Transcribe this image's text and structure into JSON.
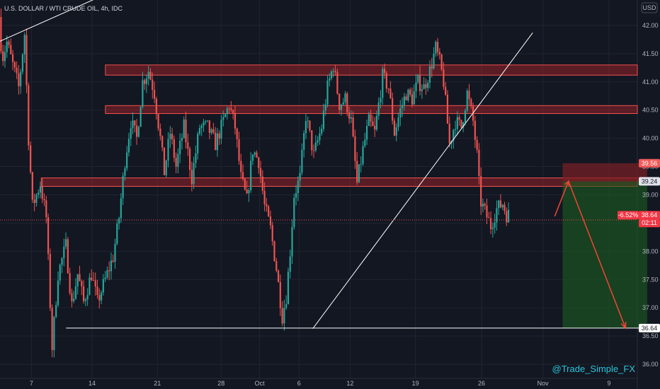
{
  "header": {
    "symbol": "U.S. DOLLAR / WTI CRUDE OIL, 4h, IDC",
    "currency": "USD"
  },
  "watermark": "@Trade_Simple_FX",
  "colors": {
    "background": "#131722",
    "grid": "#1f2430",
    "up": "#26a69a",
    "down": "#ef5350",
    "zone_fill": "#b2242b",
    "zone_border": "#ef5350",
    "line": "#ffffff",
    "arrow": "#f44336",
    "stop": "#7a1f24",
    "target": "#1b5e20"
  },
  "chart_data": {
    "type": "candlestick",
    "title": "U.S. DOLLAR / WTI CRUDE OIL, 4h, IDC",
    "ylim": [
      35.75,
      42.45
    ],
    "xlim": [
      0,
      162
    ],
    "y_ticks": [
      "42.00",
      "41.50",
      "41.00",
      "40.50",
      "40.00",
      "39.50",
      "39.00",
      "38.50",
      "38.00",
      "37.50",
      "37.00",
      "36.50",
      "36.00"
    ],
    "x_ticks": [
      {
        "label": "7",
        "x": 8
      },
      {
        "label": "14",
        "x": 23.4
      },
      {
        "label": "21",
        "x": 40
      },
      {
        "label": "28",
        "x": 56.2
      },
      {
        "label": "Oct",
        "x": 66
      },
      {
        "label": "6",
        "x": 76
      },
      {
        "label": "12",
        "x": 89
      },
      {
        "label": "19",
        "x": 105.6
      },
      {
        "label": "26",
        "x": 122.4
      },
      {
        "label": "Nov",
        "x": 138
      },
      {
        "label": "9",
        "x": 154.8
      }
    ],
    "candles": [],
    "waypoints": [
      [
        0,
        42.15
      ],
      [
        0.8,
        41.4
      ],
      [
        2,
        41.7
      ],
      [
        3.5,
        41.3
      ],
      [
        5,
        40.9
      ],
      [
        6.5,
        41.85
      ],
      [
        7.5,
        40.0
      ],
      [
        8.5,
        38.8
      ],
      [
        10.5,
        39.2
      ],
      [
        12,
        38.6
      ],
      [
        13.5,
        36.3
      ],
      [
        15,
        37.6
      ],
      [
        17,
        38.1
      ],
      [
        18.5,
        37.05
      ],
      [
        20,
        37.6
      ],
      [
        21.5,
        37.1
      ],
      [
        23.5,
        37.6
      ],
      [
        25,
        37.1
      ],
      [
        27,
        37.5
      ],
      [
        29,
        37.9
      ],
      [
        30.5,
        38.6
      ],
      [
        32,
        39.6
      ],
      [
        33.5,
        40.3
      ],
      [
        35,
        40.0
      ],
      [
        36.5,
        41.0
      ],
      [
        38,
        41.2
      ],
      [
        39.5,
        40.8
      ],
      [
        41,
        40.0
      ],
      [
        42,
        39.4
      ],
      [
        43.5,
        40.1
      ],
      [
        45,
        39.5
      ],
      [
        47,
        40.2
      ],
      [
        49,
        39.3
      ],
      [
        51,
        40.2
      ],
      [
        53,
        40.2
      ],
      [
        55,
        39.9
      ],
      [
        57,
        40.3
      ],
      [
        58.5,
        40.6
      ],
      [
        60,
        40.2
      ],
      [
        61.5,
        39.3
      ],
      [
        63,
        38.9
      ],
      [
        64.5,
        39.8
      ],
      [
        66,
        39.6
      ],
      [
        67.5,
        38.8
      ],
      [
        69,
        38.4
      ],
      [
        70.5,
        37.7
      ],
      [
        72,
        36.85
      ],
      [
        73,
        37.2
      ],
      [
        74,
        38.0
      ],
      [
        75,
        39.0
      ],
      [
        76.5,
        39.3
      ],
      [
        78,
        40.4
      ],
      [
        80,
        39.7
      ],
      [
        82,
        40.2
      ],
      [
        83.5,
        40.9
      ],
      [
        85,
        41.3
      ],
      [
        86.5,
        40.6
      ],
      [
        88,
        40.7
      ],
      [
        89.5,
        40.3
      ],
      [
        91,
        39.2
      ],
      [
        92.5,
        39.8
      ],
      [
        94,
        40.3
      ],
      [
        95.5,
        40.1
      ],
      [
        97.5,
        41.1
      ],
      [
        99,
        40.9
      ],
      [
        100.5,
        40.1
      ],
      [
        102,
        40.5
      ],
      [
        103.5,
        40.8
      ],
      [
        105,
        40.7
      ],
      [
        106.5,
        41.0
      ],
      [
        108,
        40.9
      ],
      [
        109.5,
        41.2
      ],
      [
        111,
        41.6
      ],
      [
        112,
        41.35
      ],
      [
        113,
        41.0
      ],
      [
        114.5,
        39.9
      ],
      [
        116,
        40.3
      ],
      [
        117.5,
        40.2
      ],
      [
        119,
        40.8
      ],
      [
        120.5,
        40.3
      ],
      [
        121.5,
        39.7
      ],
      [
        122.3,
        38.9
      ],
      [
        123.5,
        38.7
      ],
      [
        125,
        38.45
      ],
      [
        126.5,
        38.75
      ],
      [
        128,
        38.85
      ],
      [
        129,
        38.65
      ]
    ],
    "zones": [
      {
        "from": 26.8,
        "to": 162,
        "lo": 41.12,
        "hi": 41.3
      },
      {
        "from": 26.8,
        "to": 162,
        "lo": 40.44,
        "hi": 40.58
      },
      {
        "from": 10.5,
        "to": 162,
        "lo": 39.15,
        "hi": 39.3
      }
    ],
    "lines": [
      {
        "x1": 0,
        "y1": 41.72,
        "x2": 28.4,
        "y2": 42.6
      },
      {
        "x1": 79.5,
        "y1": 36.63,
        "x2": 135.4,
        "y2": 41.87
      },
      {
        "x1": 16.8,
        "y1": 36.64,
        "x2": 167.3,
        "y2": 36.64
      }
    ],
    "position": {
      "from": 143,
      "to": 164.5,
      "stop": 39.56,
      "entry": 39.24,
      "target": 36.64
    },
    "projection": [
      [
        141,
        38.62
      ],
      [
        144.5,
        39.24
      ],
      [
        159,
        36.64
      ]
    ],
    "current_price": 38.64,
    "price_labels": [
      {
        "text": "39.56",
        "y": 39.56,
        "kind": "stop"
      },
      {
        "text": "39.24",
        "y": 39.24,
        "kind": "entry"
      },
      {
        "text": "-6.52%",
        "y": 38.64,
        "kind": "current"
      },
      {
        "text": "38.64",
        "y": 38.64,
        "kind": "current"
      },
      {
        "text": "02:11",
        "y": 38.54,
        "kind": "countdown"
      },
      {
        "text": "36.64",
        "y": 36.64,
        "kind": "target"
      }
    ]
  }
}
